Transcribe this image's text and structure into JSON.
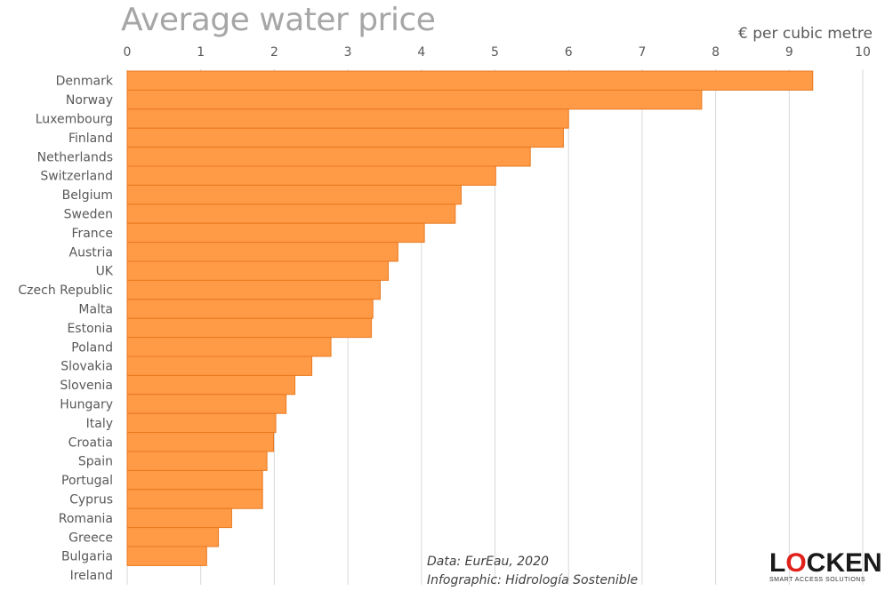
{
  "chart_data": {
    "type": "bar",
    "orientation": "horizontal",
    "title": "Average water price",
    "xlabel": "€ per cubic metre",
    "xlim": [
      0,
      10
    ],
    "xticks": [
      "0",
      "1",
      "2",
      "3",
      "4",
      "5",
      "6",
      "7",
      "8",
      "9",
      "10"
    ],
    "grid": true,
    "bar_color": "#ff9a47",
    "bar_edge_color": "#e8791f",
    "categories": [
      "Denmark",
      "Norway",
      "Luxembourg",
      "Finland",
      "Netherlands",
      "Switzerland",
      "Belgium",
      "Sweden",
      "France",
      "Austria",
      "UK",
      "Czech Republic",
      "Malta",
      "Estonia",
      "Poland",
      "Slovakia",
      "Slovenia",
      "Hungary",
      "Italy",
      "Croatia",
      "Spain",
      "Portugal",
      "Cyprus",
      "Romania",
      "Greece",
      "Bulgaria",
      "Ireland"
    ],
    "values": [
      9.32,
      7.81,
      6.0,
      5.93,
      5.48,
      5.01,
      4.54,
      4.46,
      4.04,
      3.68,
      3.55,
      3.44,
      3.34,
      3.32,
      2.77,
      2.51,
      2.28,
      2.16,
      2.02,
      1.99,
      1.9,
      1.84,
      1.84,
      1.42,
      1.24,
      1.08,
      0
    ]
  },
  "credits": {
    "data_source": "Data: EurEau, 2020",
    "infographic": "Infographic: Hidrología Sostenible"
  },
  "logo": {
    "brand_pre": "L",
    "brand_o": "O",
    "brand_post": "CKEN",
    "tagline": "SMART ACCESS SOLUTIONS"
  }
}
